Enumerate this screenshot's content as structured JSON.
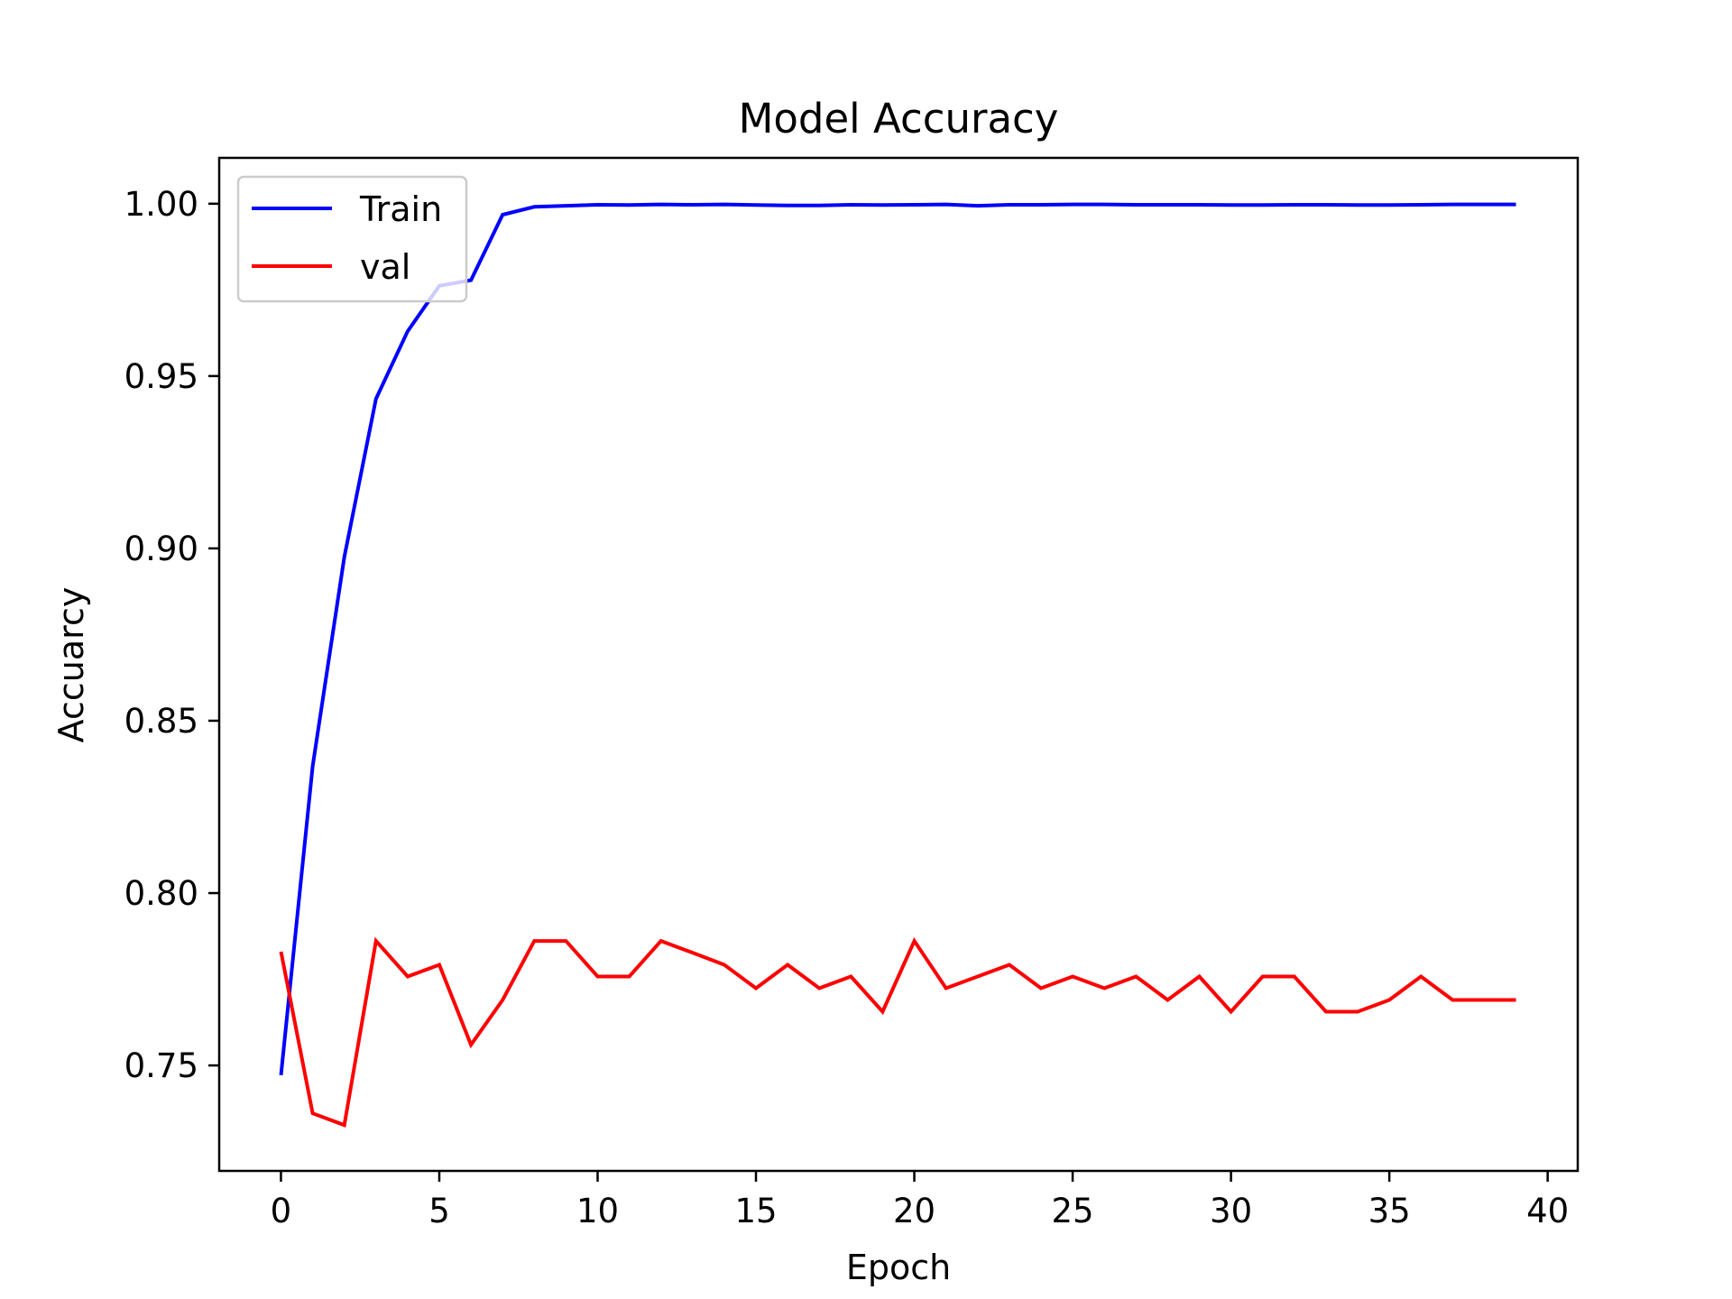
{
  "chart_data": {
    "type": "line",
    "title": "Model Accuracy",
    "xlabel": "Epoch",
    "ylabel": "Accuarcy",
    "xlim": [
      -1.95,
      40.95
    ],
    "ylim": [
      0.7194,
      1.0133
    ],
    "x_ticks": [
      0,
      5,
      10,
      15,
      20,
      25,
      30,
      35,
      40
    ],
    "x_tick_labels": [
      "0",
      "5",
      "10",
      "15",
      "20",
      "25",
      "30",
      "35",
      "40"
    ],
    "y_ticks": [
      0.75,
      0.8,
      0.85,
      0.9,
      0.95,
      1.0
    ],
    "y_tick_labels": [
      "0.75",
      "0.80",
      "0.85",
      "0.90",
      "0.95",
      "1.00"
    ],
    "grid": false,
    "legend_position": "top-left",
    "x": [
      0,
      1,
      2,
      3,
      4,
      5,
      6,
      7,
      8,
      9,
      10,
      11,
      12,
      13,
      14,
      15,
      16,
      17,
      18,
      19,
      20,
      21,
      22,
      23,
      24,
      25,
      26,
      27,
      28,
      29,
      30,
      31,
      32,
      33,
      34,
      35,
      36,
      37,
      38,
      39
    ],
    "series": [
      {
        "name": "Train",
        "color": "#0000ff",
        "values": [
          0.7472,
          0.8368,
          0.8975,
          0.9434,
          0.963,
          0.9762,
          0.9778,
          0.9968,
          0.9991,
          0.9994,
          0.9997,
          0.9996,
          0.9998,
          0.9997,
          0.9998,
          0.9996,
          0.9995,
          0.9995,
          0.9997,
          0.9996,
          0.9997,
          0.9998,
          0.9994,
          0.9997,
          0.9997,
          0.9998,
          0.9998,
          0.9997,
          0.9997,
          0.9997,
          0.9996,
          0.9996,
          0.9997,
          0.9997,
          0.9996,
          0.9996,
          0.9997,
          0.9998,
          0.9998,
          0.9998
        ]
      },
      {
        "name": "val",
        "color": "#ff0000",
        "values": [
          0.783,
          0.7361,
          0.7327,
          0.7861,
          0.7758,
          0.7792,
          0.756,
          0.769,
          0.7861,
          0.7861,
          0.7758,
          0.7758,
          0.7861,
          0.7827,
          0.7792,
          0.7724,
          0.7792,
          0.7724,
          0.7758,
          0.7656,
          0.7861,
          0.7724,
          0.7758,
          0.7792,
          0.7724,
          0.7758,
          0.7724,
          0.7758,
          0.769,
          0.7758,
          0.7656,
          0.7758,
          0.7758,
          0.7656,
          0.7656,
          0.769,
          0.7758,
          0.769,
          0.769,
          0.769
        ]
      }
    ]
  }
}
